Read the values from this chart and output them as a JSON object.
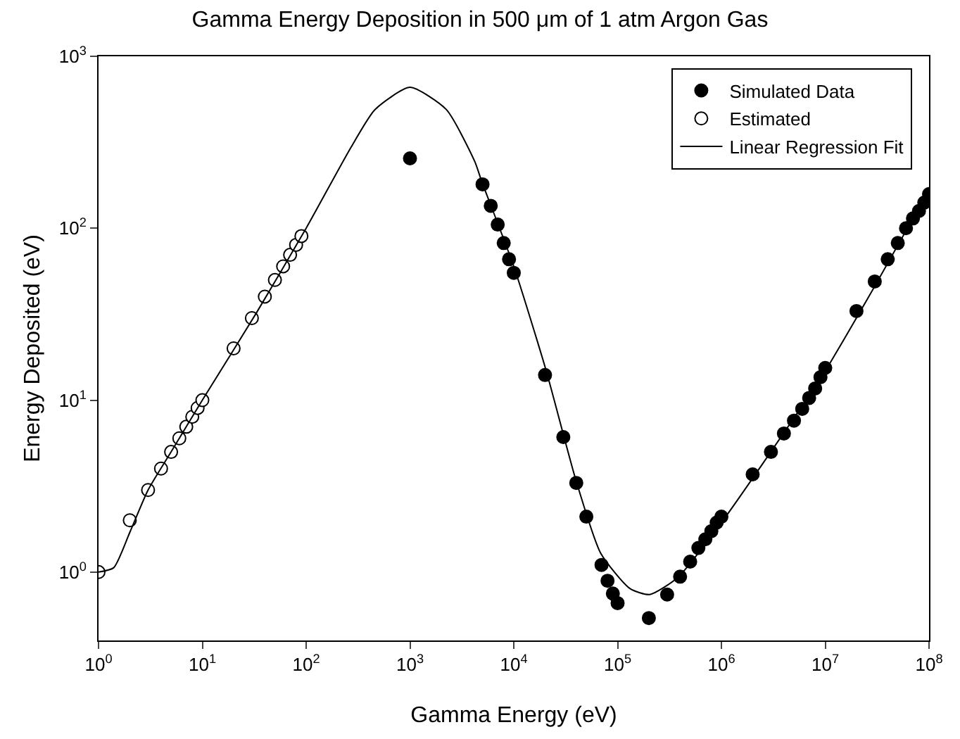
{
  "chart_data": {
    "type": "scatter",
    "title": "Gamma Energy Deposition in 500 μm of 1 atm Argon Gas",
    "xlabel": "Gamma Energy (eV)",
    "ylabel": "Energy Deposited (eV)",
    "log": "xy",
    "grid": false,
    "legend": "top right",
    "xlim": [
      1,
      100000000
    ],
    "ylim": [
      0.4,
      1000
    ],
    "xticks": [
      {
        "value": 1,
        "label": "10$^{0}$"
      },
      {
        "value": 10,
        "label": "10$^{1}$"
      },
      {
        "value": 100,
        "label": "10$^{2}$"
      },
      {
        "value": 1000,
        "label": "10$^{3}$"
      },
      {
        "value": 10000,
        "label": "10$^{4}$"
      },
      {
        "value": 100000,
        "label": "10$^{5}$"
      },
      {
        "value": 1000000,
        "label": "10$^{6}$"
      },
      {
        "value": 10000000,
        "label": "10$^{7}$"
      },
      {
        "value": 100000000,
        "label": "10$^{8}$"
      }
    ],
    "yticks": [
      {
        "value": 1,
        "label": "10$^{0}$"
      },
      {
        "value": 10,
        "label": "10$^{1}$"
      },
      {
        "value": 100,
        "label": "10$^{2}$"
      },
      {
        "value": 1000,
        "label": "10$^{3}$"
      }
    ],
    "series": [
      {
        "name": "Simulated Data",
        "marker": "circle",
        "color": "#000000",
        "x": [
          1000,
          5000,
          6000,
          7000,
          8000,
          9000,
          10000,
          20000,
          30000,
          40000,
          50000,
          70000,
          80000,
          90000,
          100000,
          200000,
          300000,
          400000,
          500000,
          600000,
          700000,
          800000,
          900000,
          1000000,
          2000000,
          3000000,
          4000000,
          5000000,
          6000000,
          7000000,
          8000000,
          9000000,
          10000000,
          20000000,
          30000000,
          40000000,
          50000000,
          60000000,
          70000000,
          80000000,
          90000000,
          100000000
        ],
        "values": [
          255,
          180,
          135,
          105,
          82,
          66,
          55,
          14,
          6.1,
          3.3,
          2.1,
          1.1,
          0.89,
          0.75,
          0.66,
          0.54,
          0.74,
          0.94,
          1.15,
          1.38,
          1.55,
          1.73,
          1.94,
          2.1,
          3.7,
          5.0,
          6.4,
          7.6,
          8.9,
          10.3,
          11.7,
          13.6,
          15.4,
          33,
          49,
          66,
          82,
          100,
          114,
          126,
          141,
          158
        ]
      },
      {
        "name": "Estimated",
        "marker": "circle",
        "color": "#ffffff",
        "x": [
          1,
          2,
          3,
          4,
          5,
          6,
          7,
          8,
          9,
          10,
          20,
          30,
          40,
          50,
          60,
          70,
          80,
          90
        ],
        "values": [
          1,
          2,
          3,
          4,
          5,
          6,
          7,
          8,
          9,
          10,
          20,
          30,
          40,
          50,
          60,
          70,
          80,
          90
        ]
      },
      {
        "name": "Linear Regression Fit",
        "type": "line",
        "color": "#000000",
        "x": [
          1,
          1.4,
          2,
          3,
          5,
          10,
          33,
          100,
          270,
          460,
          1000,
          2240,
          4200,
          4900,
          10000,
          20400,
          39800,
          69000,
          132000,
          204000,
          380000,
          1000000,
          3470000,
          10000000,
          28800000,
          100000000
        ],
        "values": [
          1,
          1.06,
          1.7,
          3.0,
          5.0,
          10,
          32,
          100,
          295,
          490,
          660,
          490,
          245,
          188,
          60,
          15,
          3.4,
          1.28,
          0.8,
          0.74,
          0.93,
          1.94,
          5.7,
          14.8,
          44,
          167
        ]
      }
    ]
  }
}
